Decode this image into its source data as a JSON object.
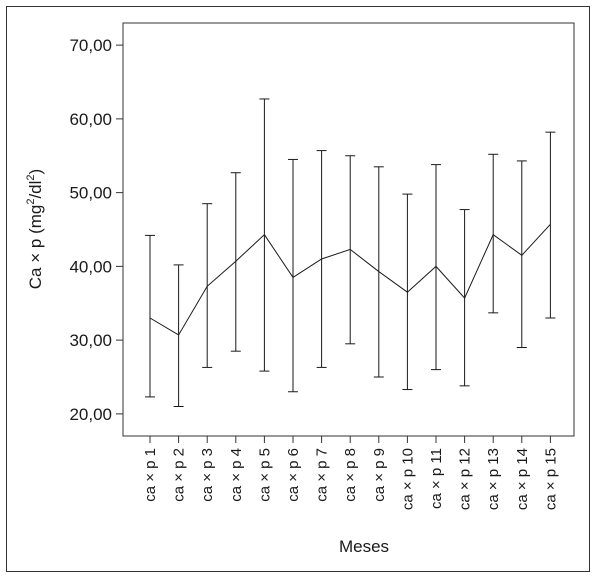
{
  "chart_data": {
    "type": "line",
    "ylabel_main": "Ca × p (mg",
    "ylabel_sup1": "2",
    "ylabel_mid": "/dl",
    "ylabel_sup2": "2",
    "ylabel_end": ")",
    "xlabel": "Meses",
    "ylim": [
      17.0,
      73.0
    ],
    "yticks": [
      20,
      30,
      40,
      50,
      60,
      70
    ],
    "ytick_labels": [
      "20,00",
      "30,00",
      "40,00",
      "50,00",
      "60,00",
      "70,00"
    ],
    "categories": [
      "ca × p 1",
      "ca × p 2",
      "ca × p 3",
      "ca × p 4",
      "ca × p 5",
      "ca × p 6",
      "ca × p 7",
      "ca × p 8",
      "ca × p 9",
      "ca × p 10",
      "ca × p 11",
      "ca × p 12",
      "ca × p 13",
      "ca × p 14",
      "ca × p 15"
    ],
    "series": [
      {
        "values": [
          33.0,
          30.7,
          37.3,
          40.7,
          44.3,
          38.5,
          41.0,
          42.3,
          39.3,
          36.5,
          40.0,
          35.7,
          44.3,
          41.5,
          45.7
        ],
        "lower": [
          22.3,
          21.0,
          26.3,
          28.5,
          25.8,
          23.0,
          26.3,
          29.5,
          25.0,
          23.3,
          26.0,
          23.8,
          33.7,
          29.0,
          33.0
        ],
        "upper": [
          44.2,
          40.2,
          48.5,
          52.7,
          62.7,
          54.5,
          55.7,
          55.0,
          53.5,
          49.8,
          53.8,
          47.7,
          55.2,
          54.3,
          58.2
        ]
      }
    ],
    "grid": false,
    "color": "#1a1a1a"
  }
}
